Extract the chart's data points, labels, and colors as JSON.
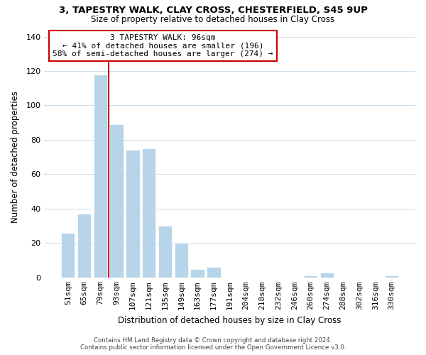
{
  "title": "3, TAPESTRY WALK, CLAY CROSS, CHESTERFIELD, S45 9UP",
  "subtitle": "Size of property relative to detached houses in Clay Cross",
  "xlabel": "Distribution of detached houses by size in Clay Cross",
  "ylabel": "Number of detached properties",
  "bar_labels": [
    "51sqm",
    "65sqm",
    "79sqm",
    "93sqm",
    "107sqm",
    "121sqm",
    "135sqm",
    "149sqm",
    "163sqm",
    "177sqm",
    "191sqm",
    "204sqm",
    "218sqm",
    "232sqm",
    "246sqm",
    "260sqm",
    "274sqm",
    "288sqm",
    "302sqm",
    "316sqm",
    "330sqm"
  ],
  "bar_values": [
    26,
    37,
    118,
    89,
    74,
    75,
    30,
    20,
    5,
    6,
    0,
    0,
    0,
    0,
    0,
    1,
    3,
    0,
    0,
    0,
    1
  ],
  "bar_color": "#b8d4e8",
  "bar_edge_color": "#ffffff",
  "vline_color": "#cc0000",
  "ylim": [
    0,
    140
  ],
  "yticks": [
    0,
    20,
    40,
    60,
    80,
    100,
    120,
    140
  ],
  "annotation_title": "3 TAPESTRY WALK: 96sqm",
  "annotation_line1": "← 41% of detached houses are smaller (196)",
  "annotation_line2": "58% of semi-detached houses are larger (274) →",
  "footer_line1": "Contains HM Land Registry data © Crown copyright and database right 2024.",
  "footer_line2": "Contains public sector information licensed under the Open Government Licence v3.0.",
  "background_color": "#ffffff",
  "grid_color": "#ccddee"
}
